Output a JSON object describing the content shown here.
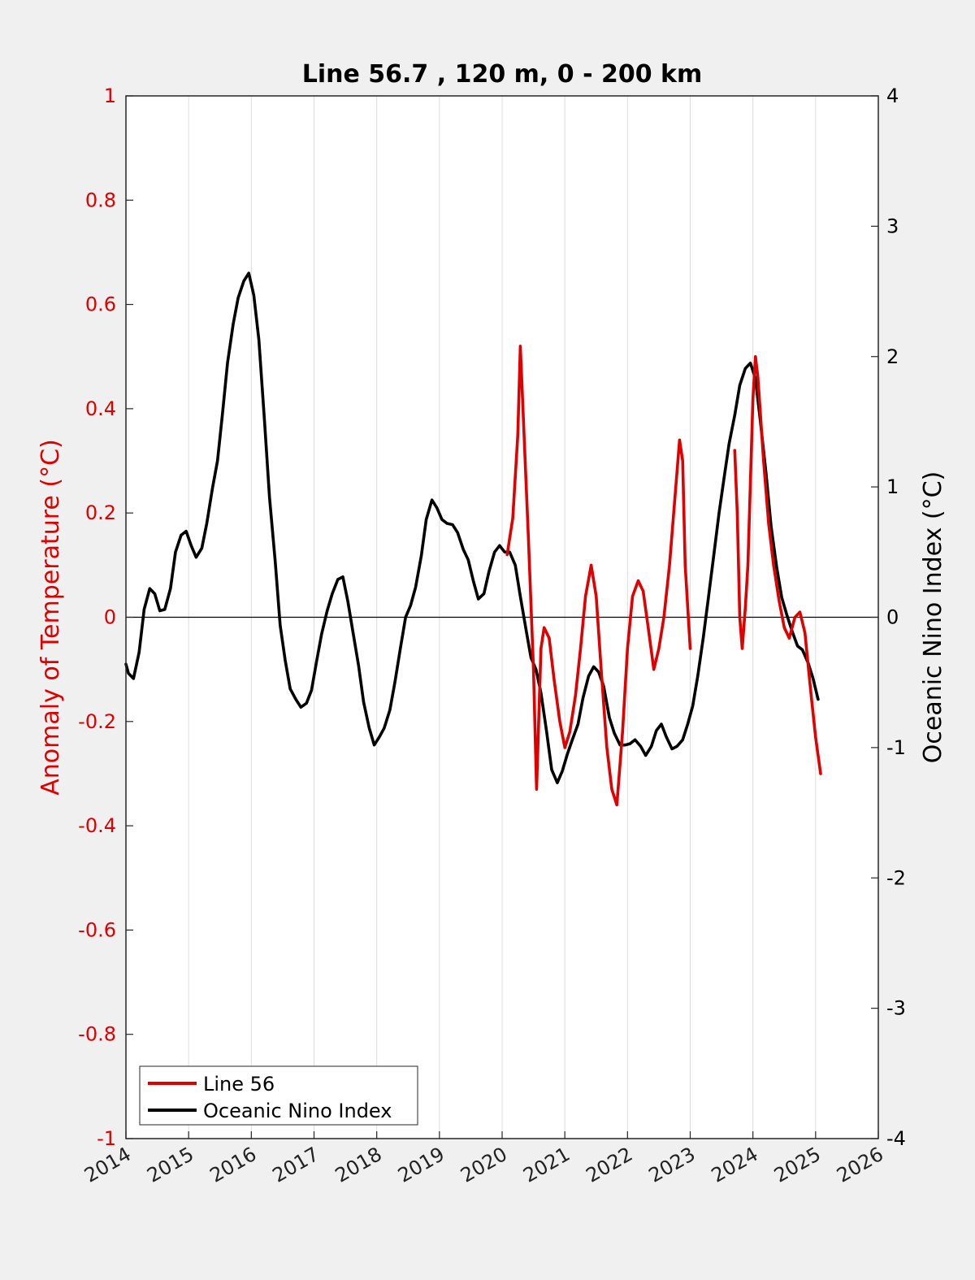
{
  "chart_data": {
    "type": "line",
    "title": "Line 56.7 , 120 m, 0 - 200 km",
    "xlabel": "",
    "ylabel_left": "Anomaly of Temperature (°C)",
    "ylabel_right": "Oceanic Nino Index (°C)",
    "xlim": [
      2014,
      2026
    ],
    "ylim_left": [
      -1,
      1
    ],
    "ylim_right": [
      -4,
      4
    ],
    "x_ticks": [
      "2014",
      "2015",
      "2016",
      "2017",
      "2018",
      "2019",
      "2020",
      "2021",
      "2022",
      "2023",
      "2024",
      "2025",
      "2026"
    ],
    "y_ticks_left": [
      "1",
      "0.8",
      "0.6",
      "0.4",
      "0.2",
      "0",
      "-0.2",
      "-0.4",
      "-0.6",
      "-0.8",
      "-1"
    ],
    "y_ticks_right": [
      "4",
      "3",
      "2",
      "1",
      "0",
      "-1",
      "-2",
      "-3",
      "-4"
    ],
    "grid": "vertical",
    "zero_line": true,
    "legend_position": "bottom-left",
    "colors": {
      "line56": "#e00000",
      "oni": "#000000"
    },
    "series": [
      {
        "name": "Line 56",
        "axis": "left",
        "segments": [
          [
            [
              2020.08,
              0.12
            ],
            [
              2020.17,
              0.19
            ],
            [
              2020.25,
              0.35
            ],
            [
              2020.29,
              0.52
            ],
            [
              2020.35,
              0.35
            ],
            [
              2020.42,
              0.15
            ],
            [
              2020.5,
              -0.1
            ],
            [
              2020.55,
              -0.33
            ],
            [
              2020.62,
              -0.06
            ],
            [
              2020.67,
              -0.02
            ],
            [
              2020.75,
              -0.04
            ],
            [
              2020.83,
              -0.12
            ],
            [
              2020.92,
              -0.2
            ],
            [
              2021.0,
              -0.25
            ],
            [
              2021.08,
              -0.22
            ],
            [
              2021.17,
              -0.15
            ],
            [
              2021.25,
              -0.06
            ],
            [
              2021.33,
              0.04
            ],
            [
              2021.42,
              0.1
            ],
            [
              2021.5,
              0.04
            ],
            [
              2021.58,
              -0.1
            ],
            [
              2021.67,
              -0.25
            ],
            [
              2021.75,
              -0.33
            ],
            [
              2021.83,
              -0.36
            ],
            [
              2021.92,
              -0.22
            ],
            [
              2022.0,
              -0.06
            ],
            [
              2022.08,
              0.04
            ],
            [
              2022.17,
              0.07
            ],
            [
              2022.25,
              0.05
            ],
            [
              2022.33,
              -0.02
            ],
            [
              2022.42,
              -0.1
            ],
            [
              2022.5,
              -0.06
            ],
            [
              2022.58,
              0.0
            ],
            [
              2022.67,
              0.1
            ],
            [
              2022.75,
              0.22
            ],
            [
              2022.83,
              0.34
            ],
            [
              2022.88,
              0.3
            ],
            [
              2022.92,
              0.1
            ],
            [
              2023.0,
              -0.06
            ]
          ],
          [
            [
              2023.71,
              0.32
            ],
            [
              2023.75,
              0.2
            ],
            [
              2023.79,
              0.0
            ],
            [
              2023.83,
              -0.06
            ],
            [
              2023.88,
              0.02
            ],
            [
              2023.92,
              0.1
            ],
            [
              2024.0,
              0.42
            ],
            [
              2024.04,
              0.5
            ],
            [
              2024.08,
              0.46
            ],
            [
              2024.17,
              0.3
            ],
            [
              2024.25,
              0.18
            ],
            [
              2024.33,
              0.1
            ],
            [
              2024.42,
              0.03
            ],
            [
              2024.5,
              -0.02
            ],
            [
              2024.58,
              -0.04
            ],
            [
              2024.67,
              0.0
            ],
            [
              2024.75,
              0.01
            ],
            [
              2024.83,
              -0.03
            ],
            [
              2024.92,
              -0.14
            ],
            [
              2025.0,
              -0.23
            ],
            [
              2025.08,
              -0.3
            ]
          ]
        ]
      },
      {
        "name": "Oceanic Nino Index",
        "axis": "right",
        "segments": [
          [
            [
              2014.0,
              -0.36
            ],
            [
              2014.04,
              -0.43
            ],
            [
              2014.12,
              -0.47
            ],
            [
              2014.21,
              -0.27
            ],
            [
              2014.29,
              0.06
            ],
            [
              2014.38,
              0.22
            ],
            [
              2014.46,
              0.18
            ],
            [
              2014.54,
              0.05
            ],
            [
              2014.62,
              0.06
            ],
            [
              2014.71,
              0.22
            ],
            [
              2014.79,
              0.5
            ],
            [
              2014.88,
              0.63
            ],
            [
              2014.96,
              0.66
            ],
            [
              2015.04,
              0.55
            ],
            [
              2015.12,
              0.46
            ],
            [
              2015.21,
              0.53
            ],
            [
              2015.29,
              0.72
            ],
            [
              2015.38,
              0.99
            ],
            [
              2015.46,
              1.2
            ],
            [
              2015.54,
              1.56
            ],
            [
              2015.62,
              1.95
            ],
            [
              2015.71,
              2.25
            ],
            [
              2015.79,
              2.45
            ],
            [
              2015.88,
              2.58
            ],
            [
              2015.96,
              2.64
            ],
            [
              2016.04,
              2.47
            ],
            [
              2016.12,
              2.13
            ],
            [
              2016.21,
              1.51
            ],
            [
              2016.29,
              0.92
            ],
            [
              2016.38,
              0.43
            ],
            [
              2016.46,
              -0.06
            ],
            [
              2016.54,
              -0.33
            ],
            [
              2016.62,
              -0.55
            ],
            [
              2016.71,
              -0.63
            ],
            [
              2016.79,
              -0.69
            ],
            [
              2016.88,
              -0.66
            ],
            [
              2016.96,
              -0.56
            ],
            [
              2017.04,
              -0.34
            ],
            [
              2017.12,
              -0.13
            ],
            [
              2017.21,
              0.05
            ],
            [
              2017.29,
              0.18
            ],
            [
              2017.38,
              0.29
            ],
            [
              2017.46,
              0.31
            ],
            [
              2017.54,
              0.12
            ],
            [
              2017.62,
              -0.11
            ],
            [
              2017.71,
              -0.37
            ],
            [
              2017.79,
              -0.65
            ],
            [
              2017.88,
              -0.85
            ],
            [
              2017.96,
              -0.98
            ],
            [
              2018.04,
              -0.92
            ],
            [
              2018.12,
              -0.85
            ],
            [
              2018.21,
              -0.71
            ],
            [
              2018.29,
              -0.5
            ],
            [
              2018.38,
              -0.23
            ],
            [
              2018.46,
              0.0
            ],
            [
              2018.54,
              0.09
            ],
            [
              2018.62,
              0.23
            ],
            [
              2018.71,
              0.47
            ],
            [
              2018.79,
              0.75
            ],
            [
              2018.88,
              0.9
            ],
            [
              2018.96,
              0.84
            ],
            [
              2019.04,
              0.75
            ],
            [
              2019.12,
              0.72
            ],
            [
              2019.21,
              0.71
            ],
            [
              2019.29,
              0.65
            ],
            [
              2019.38,
              0.52
            ],
            [
              2019.46,
              0.44
            ],
            [
              2019.54,
              0.28
            ],
            [
              2019.62,
              0.14
            ],
            [
              2019.71,
              0.18
            ],
            [
              2019.79,
              0.35
            ],
            [
              2019.88,
              0.5
            ],
            [
              2019.96,
              0.55
            ],
            [
              2020.04,
              0.5
            ],
            [
              2020.12,
              0.5
            ],
            [
              2020.21,
              0.4
            ],
            [
              2020.29,
              0.16
            ],
            [
              2020.38,
              -0.09
            ],
            [
              2020.46,
              -0.31
            ],
            [
              2020.54,
              -0.4
            ],
            [
              2020.62,
              -0.58
            ],
            [
              2020.71,
              -0.88
            ],
            [
              2020.79,
              -1.17
            ],
            [
              2020.88,
              -1.27
            ],
            [
              2020.96,
              -1.18
            ],
            [
              2021.04,
              -1.05
            ],
            [
              2021.12,
              -0.94
            ],
            [
              2021.21,
              -0.82
            ],
            [
              2021.29,
              -0.62
            ],
            [
              2021.38,
              -0.45
            ],
            [
              2021.46,
              -0.38
            ],
            [
              2021.54,
              -0.42
            ],
            [
              2021.62,
              -0.53
            ],
            [
              2021.71,
              -0.77
            ],
            [
              2021.79,
              -0.89
            ],
            [
              2021.88,
              -0.98
            ],
            [
              2021.96,
              -0.98
            ],
            [
              2022.04,
              -0.97
            ],
            [
              2022.12,
              -0.94
            ],
            [
              2022.21,
              -0.99
            ],
            [
              2022.29,
              -1.06
            ],
            [
              2022.38,
              -0.99
            ],
            [
              2022.46,
              -0.87
            ],
            [
              2022.54,
              -0.82
            ],
            [
              2022.62,
              -0.92
            ],
            [
              2022.71,
              -1.01
            ],
            [
              2022.79,
              -0.99
            ],
            [
              2022.88,
              -0.94
            ],
            [
              2022.96,
              -0.82
            ],
            [
              2023.04,
              -0.68
            ],
            [
              2023.12,
              -0.45
            ],
            [
              2023.21,
              -0.15
            ],
            [
              2023.29,
              0.15
            ],
            [
              2023.38,
              0.49
            ],
            [
              2023.46,
              0.8
            ],
            [
              2023.54,
              1.07
            ],
            [
              2023.62,
              1.33
            ],
            [
              2023.71,
              1.55
            ],
            [
              2023.79,
              1.78
            ],
            [
              2023.88,
              1.91
            ],
            [
              2023.96,
              1.95
            ],
            [
              2024.04,
              1.83
            ],
            [
              2024.12,
              1.5
            ],
            [
              2024.21,
              1.1
            ],
            [
              2024.29,
              0.7
            ],
            [
              2024.38,
              0.38
            ],
            [
              2024.46,
              0.15
            ],
            [
              2024.54,
              0.02
            ],
            [
              2024.62,
              -0.1
            ],
            [
              2024.71,
              -0.22
            ],
            [
              2024.79,
              -0.25
            ],
            [
              2024.88,
              -0.35
            ],
            [
              2024.96,
              -0.47
            ],
            [
              2025.04,
              -0.63
            ]
          ]
        ]
      }
    ]
  }
}
